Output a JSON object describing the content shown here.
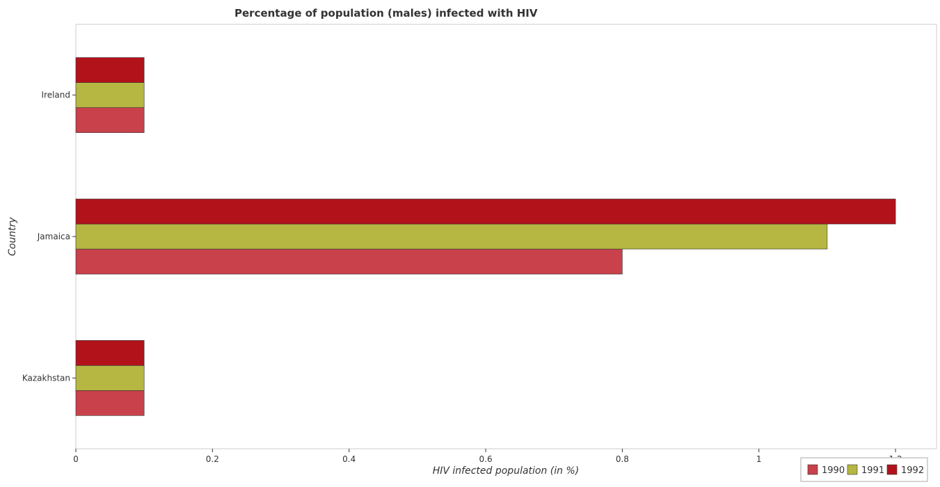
{
  "chart_data": {
    "type": "bar",
    "orientation": "horizontal",
    "title": "Percentage of population (males) infected with HIV",
    "xlabel": "HIV infected population (in %)",
    "ylabel": "Country",
    "categories": [
      "Ireland",
      "Jamaica",
      "Kazakhstan"
    ],
    "series": [
      {
        "name": "1990",
        "color": "#c8414b",
        "values": [
          0.1,
          0.8,
          0.1
        ]
      },
      {
        "name": "1991",
        "color": "#b5b742",
        "values": [
          0.1,
          1.1,
          0.1
        ]
      },
      {
        "name": "1992",
        "color": "#b2131b",
        "values": [
          0.1,
          1.2,
          0.1
        ]
      }
    ],
    "xlim": [
      0,
      1.26
    ],
    "xticks": [
      0,
      0.2,
      0.4,
      0.6,
      0.8,
      1,
      1.2
    ],
    "xtick_labels": [
      "0",
      "0.2",
      "0.4",
      "0.6",
      "0.8",
      "1",
      "1.2"
    ],
    "legend_position": "bottom-right",
    "grid": false
  }
}
